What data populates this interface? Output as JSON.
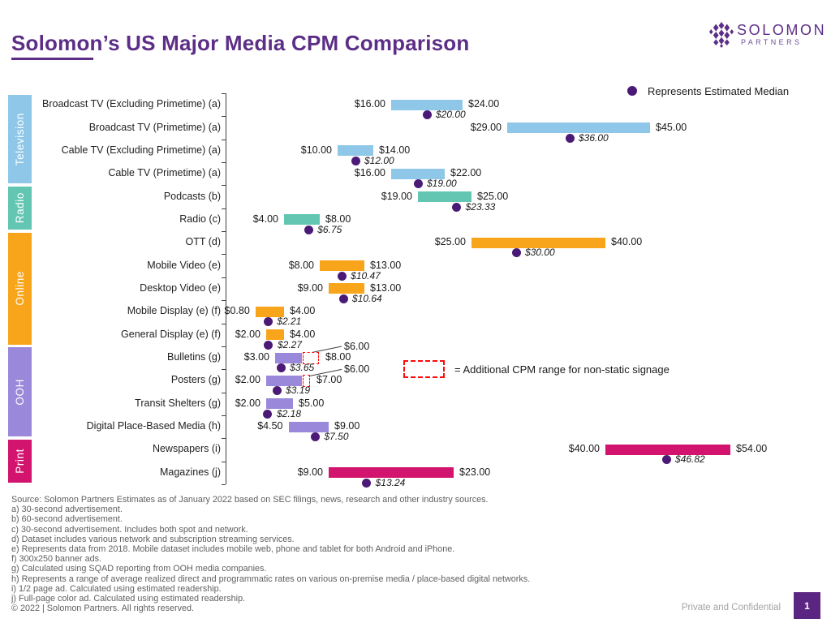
{
  "page": {
    "title": "Solomon’s US Major Media CPM Comparison",
    "confidential": "Private and Confidential",
    "page_number": "1"
  },
  "logo": {
    "wordmark": "SOLOMON",
    "subtext": "PARTNERS"
  },
  "legends": {
    "median": "Represents Estimated Median",
    "dashed_range": "= Additional CPM range for non-static signage"
  },
  "colors": {
    "brand_purple": "#5C2E87",
    "median_dot": "#4A1A76",
    "dashed_red": "#FF0A0A",
    "television": "#8FC7E9",
    "radio": "#63C6B2",
    "online": "#F9A51B",
    "ooh": "#9A88DA",
    "print": "#D2146E"
  },
  "chart_data": {
    "type": "range-bar",
    "orientation": "horizontal",
    "title": "Solomon’s US Major Media CPM Comparison",
    "x_axis": {
      "unit": "CPM in USD",
      "min": 0,
      "max": 62,
      "gridlines": false,
      "tick_labels_visible": false
    },
    "legend_position": "top-right",
    "groups": [
      {
        "label": "Television",
        "color": "#8FC7E9",
        "row_start": 0,
        "row_count": 4
      },
      {
        "label": "Radio",
        "color": "#63C6B2",
        "row_start": 4,
        "row_count": 2
      },
      {
        "label": "Online",
        "color": "#F9A51B",
        "row_start": 6,
        "row_count": 5
      },
      {
        "label": "OOH",
        "color": "#9A88DA",
        "row_start": 11,
        "row_count": 4
      },
      {
        "label": "Print",
        "color": "#D2146E",
        "row_start": 15,
        "row_count": 2
      }
    ],
    "rows": [
      {
        "label": "Broadcast TV (Excluding Primetime) (a)",
        "group": "Television",
        "min": 16,
        "max": 24,
        "median": 20,
        "min_label": "$16.00",
        "max_label": "$24.00",
        "median_label": "$20.00"
      },
      {
        "label": "Broadcast TV (Primetime) (a)",
        "group": "Television",
        "min": 29,
        "max": 45,
        "median": 36,
        "min_label": "$29.00",
        "max_label": "$45.00",
        "median_label": "$36.00"
      },
      {
        "label": "Cable TV (Excluding Primetime) (a)",
        "group": "Television",
        "min": 10,
        "max": 14,
        "median": 12,
        "min_label": "$10.00",
        "max_label": "$14.00",
        "median_label": "$12.00"
      },
      {
        "label": "Cable TV (Primetime) (a)",
        "group": "Television",
        "min": 16,
        "max": 22,
        "median": 19,
        "min_label": "$16.00",
        "max_label": "$22.00",
        "median_label": "$19.00"
      },
      {
        "label": "Podcasts (b)",
        "group": "Radio",
        "min": 19,
        "max": 25,
        "median": 23.33,
        "min_label": "$19.00",
        "max_label": "$25.00",
        "median_label": "$23.33"
      },
      {
        "label": "Radio (c)",
        "group": "Radio",
        "min": 4,
        "max": 8,
        "median": 6.75,
        "min_label": "$4.00",
        "max_label": "$8.00",
        "median_label": "$6.75"
      },
      {
        "label": "OTT (d)",
        "group": "Online",
        "min": 25,
        "max": 40,
        "median": 30,
        "min_label": "$25.00",
        "max_label": "$40.00",
        "median_label": "$30.00"
      },
      {
        "label": "Mobile Video (e)",
        "group": "Online",
        "min": 8,
        "max": 13,
        "median": 10.47,
        "min_label": "$8.00",
        "max_label": "$13.00",
        "median_label": "$10.47"
      },
      {
        "label": "Desktop Video (e)",
        "group": "Online",
        "min": 9,
        "max": 13,
        "median": 10.64,
        "min_label": "$9.00",
        "max_label": "$13.00",
        "median_label": "$10.64"
      },
      {
        "label": "Mobile Display (e) (f)",
        "group": "Online",
        "min": 0.8,
        "max": 4,
        "median": 2.21,
        "min_label": "$0.80",
        "max_label": "$4.00",
        "median_label": "$2.21"
      },
      {
        "label": "General Display (e) (f)",
        "group": "Online",
        "min": 2,
        "max": 4,
        "median": 2.27,
        "min_label": "$2.00",
        "max_label": "$4.00",
        "median_label": "$2.27"
      },
      {
        "label": "Bulletins (g)",
        "group": "OOH",
        "min": 3,
        "max": 6,
        "median": 3.65,
        "min_label": "$3.00",
        "max_label": "$8.00",
        "median_label": "$3.65",
        "dash_max": 8,
        "static_max_label": "$6.00"
      },
      {
        "label": "Posters (g)",
        "group": "OOH",
        "min": 2,
        "max": 6,
        "median": 3.19,
        "min_label": "$2.00",
        "max_label": "$7.00",
        "median_label": "$3.19",
        "dash_max": 7,
        "static_max_label": "$6.00"
      },
      {
        "label": "Transit Shelters (g)",
        "group": "OOH",
        "min": 2,
        "max": 5,
        "median": 2.18,
        "min_label": "$2.00",
        "max_label": "$5.00",
        "median_label": "$2.18"
      },
      {
        "label": "Digital Place-Based Media (h)",
        "group": "OOH",
        "min": 4.5,
        "max": 9,
        "median": 7.5,
        "min_label": "$4.50",
        "max_label": "$9.00",
        "median_label": "$7.50"
      },
      {
        "label": "Newspapers (i)",
        "group": "Print",
        "min": 40,
        "max": 54,
        "median": 46.82,
        "min_label": "$40.00",
        "max_label": "$54.00",
        "median_label": "$46.82"
      },
      {
        "label": "Magazines (j)",
        "group": "Print",
        "min": 9,
        "max": 23,
        "median": 13.24,
        "min_label": "$9.00",
        "max_label": "$23.00",
        "median_label": "$13.24"
      }
    ],
    "annotations": [
      "= Additional CPM range for non-static signage",
      "Represents Estimated Median"
    ]
  },
  "footnotes": [
    "Source: Solomon Partners Estimates as of January 2022 based on SEC filings, news, research and other industry sources.",
    "a) 30-second advertisement.",
    "b) 60-second advertisement.",
    "c) 30-second advertisement. Includes both spot and network.",
    "d) Dataset includes various network and subscription streaming services.",
    "e) Represents data from 2018. Mobile dataset includes mobile web, phone and tablet for both Android and iPhone.",
    "f) 300x250 banner ads.",
    "g) Calculated using SQAD reporting from OOH media companies.",
    "h) Represents a range of average realized direct and programmatic rates on various on-premise media / place-based digital networks.",
    "i) 1/2 page ad. Calculated using estimated readership.",
    "j) Full-page color ad. Calculated using estimated readership.",
    "© 2022 | Solomon Partners. All rights reserved."
  ]
}
